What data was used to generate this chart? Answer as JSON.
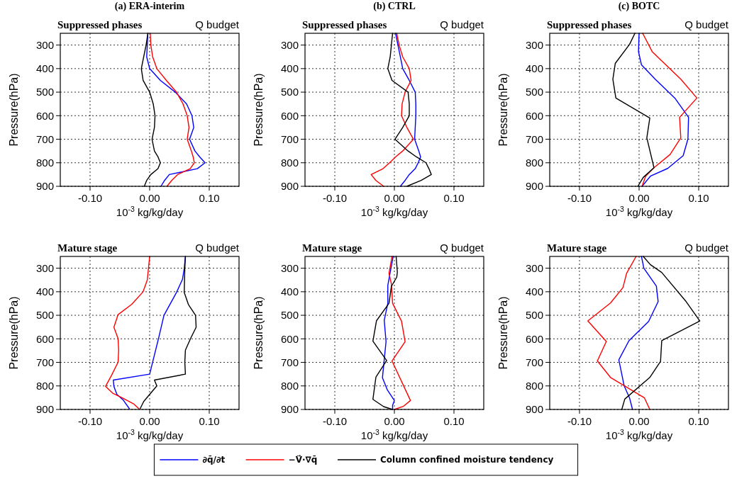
{
  "chart_data": [
    {
      "type": "line",
      "title": "(a) ERA-interim",
      "subtitle": "Suppressed phases",
      "annotations": [
        "Q budget"
      ],
      "xlabel": "10$^{-3}$ kg/kg/day",
      "ylabel": "Pressure(hPa)",
      "xlim": [
        -0.15,
        0.15
      ],
      "xticks": [
        {
          "value": -0.1,
          "label": "-0.10"
        },
        {
          "value": 0,
          "label": "0.00"
        },
        {
          "value": 0.1,
          "label": "0.10"
        }
      ],
      "ylim": [
        900,
        250
      ],
      "yticks": [
        300,
        400,
        500,
        600,
        700,
        800,
        900
      ],
      "grid": true,
      "legend": "bottom",
      "series": [
        {
          "name": "∂q̄/∂t",
          "color": "#0000ff",
          "x": [
            -0.003,
            -0.004,
            -0.005,
            0.0,
            0.018,
            0.043,
            0.062,
            0.071,
            0.074,
            0.067,
            0.076,
            0.084,
            0.093,
            0.08,
            0.033,
            0.025,
            0.019
          ],
          "values": [
            250,
            300,
            350,
            400,
            450,
            500,
            550,
            600,
            650,
            700,
            750,
            775,
            800,
            825,
            850,
            875,
            900
          ]
        },
        {
          "name": "−V⃗·∇q̄",
          "color": "#ff0000",
          "x": [
            0.001,
            0.002,
            0.005,
            0.012,
            0.028,
            0.045,
            0.056,
            0.063,
            0.066,
            0.063,
            0.07,
            0.073,
            0.075,
            0.068,
            0.047,
            0.037,
            0.029
          ],
          "values": [
            250,
            300,
            350,
            400,
            450,
            500,
            550,
            600,
            650,
            700,
            750,
            775,
            800,
            825,
            850,
            875,
            900
          ]
        },
        {
          "name": "Column confined moisture tendency",
          "color": "#000000",
          "x": [
            -0.003,
            -0.006,
            -0.01,
            -0.014,
            -0.011,
            0.0,
            0.006,
            0.009,
            0.008,
            0.004,
            0.008,
            0.014,
            0.018,
            0.014,
            0.002,
            -0.005,
            -0.009
          ],
          "values": [
            250,
            300,
            350,
            400,
            450,
            500,
            550,
            600,
            650,
            700,
            750,
            775,
            800,
            825,
            850,
            875,
            900
          ]
        }
      ]
    },
    {
      "type": "line",
      "title": "(b) CTRL",
      "subtitle": "Suppressed phases",
      "annotations": [
        "Q budget"
      ],
      "xlabel": "10$^{-3}$ kg/kg/day",
      "ylabel": "Pressure(hPa)",
      "xlim": [
        -0.15,
        0.15
      ],
      "xticks": [
        {
          "value": -0.1,
          "label": "-0.10"
        },
        {
          "value": 0,
          "label": "0.00"
        },
        {
          "value": 0.1,
          "label": "0.10"
        }
      ],
      "ylim": [
        900,
        250
      ],
      "yticks": [
        300,
        400,
        500,
        600,
        700,
        800,
        900
      ],
      "grid": true,
      "series": [
        {
          "color": "#0000ff",
          "x": [
            0.002,
            0.006,
            0.01,
            0.014,
            0.025,
            0.035,
            0.036,
            0.036,
            0.035,
            0.034,
            0.041,
            0.044,
            0.04,
            0.035,
            0.025,
            0.018,
            0.01
          ],
          "values": [
            250,
            300,
            350,
            400,
            450,
            500,
            550,
            600,
            650,
            700,
            750,
            775,
            800,
            825,
            850,
            875,
            900
          ]
        },
        {
          "color": "#ff0000",
          "x": [
            0.004,
            0.008,
            0.014,
            0.025,
            0.028,
            0.018,
            0.013,
            0.012,
            0.021,
            0.032,
            0.014,
            0.002,
            -0.008,
            -0.019,
            -0.039,
            -0.031,
            -0.018
          ],
          "values": [
            250,
            300,
            350,
            400,
            450,
            500,
            550,
            600,
            650,
            700,
            750,
            775,
            800,
            825,
            850,
            875,
            900
          ]
        },
        {
          "color": "#000000",
          "x": [
            -0.003,
            -0.005,
            -0.007,
            -0.011,
            -0.004,
            0.023,
            0.025,
            0.025,
            0.014,
            0.001,
            0.023,
            0.037,
            0.053,
            0.058,
            0.062,
            0.045,
            0.021
          ],
          "values": [
            250,
            300,
            350,
            400,
            450,
            500,
            550,
            600,
            650,
            700,
            750,
            775,
            800,
            825,
            850,
            875,
            900
          ]
        }
      ]
    },
    {
      "type": "line",
      "title": "(c) BOTC",
      "subtitle": "Suppressed phases",
      "annotations": [
        "Q budget"
      ],
      "xlabel": "10$^{-3}$ kg/kg/day",
      "ylabel": "Pressure(hPa)",
      "xlim": [
        -0.15,
        0.15
      ],
      "xticks": [
        {
          "value": -0.1,
          "label": "-0.10"
        },
        {
          "value": 0,
          "label": "0.00"
        },
        {
          "value": 0.1,
          "label": "0.10"
        }
      ],
      "ylim": [
        900,
        250
      ],
      "yticks": [
        300,
        400,
        500,
        600,
        700,
        800,
        900
      ],
      "grid": true,
      "series": [
        {
          "color": "#0000ff",
          "x": [
            0.0,
            -0.001,
            0.004,
            0.027,
            0.06,
            0.083,
            0.082,
            0.074,
            0.048,
            0.019,
            0.005
          ],
          "values": [
            250,
            328,
            384,
            445,
            525,
            607,
            699,
            770,
            824,
            857,
            900
          ]
        },
        {
          "color": "#ff0000",
          "x": [
            0.006,
            0.022,
            0.07,
            0.097,
            0.068,
            0.07,
            0.052,
            0.025,
            0.011,
            0.005
          ],
          "values": [
            250,
            328,
            445,
            525,
            607,
            694,
            765,
            821,
            857,
            900
          ]
        },
        {
          "color": "#000000",
          "x": [
            -0.007,
            -0.016,
            -0.04,
            -0.044,
            -0.039,
            0.018,
            0.013,
            0.025,
            0.007,
            -0.002
          ],
          "values": [
            250,
            297,
            378,
            445,
            525,
            610,
            694,
            821,
            862,
            900
          ]
        }
      ]
    },
    {
      "type": "line",
      "subtitle": "Mature stage",
      "annotations": [
        "Q budget"
      ],
      "xlabel": "10$^{-3}$ kg/kg/day",
      "ylabel": "Pressure(hPa)",
      "xlim": [
        -0.15,
        0.15
      ],
      "xticks": [
        {
          "value": -0.1,
          "label": "-0.10"
        },
        {
          "value": 0,
          "label": "0.00"
        },
        {
          "value": 0.1,
          "label": "0.10"
        }
      ],
      "ylim": [
        900,
        250
      ],
      "yticks": [
        300,
        400,
        500,
        600,
        700,
        800,
        900
      ],
      "grid": true,
      "series": [
        {
          "color": "#0000ff",
          "x": [
            0.06,
            0.058,
            0.055,
            0.045,
            0.024,
            0.015,
            0.005,
            0.0,
            -0.061,
            -0.06,
            -0.055,
            -0.044,
            -0.034
          ],
          "values": [
            250,
            302,
            348,
            403,
            500,
            597,
            699,
            750,
            775,
            802,
            836,
            861,
            897
          ]
        },
        {
          "color": "#ff0000",
          "x": [
            0.0,
            -0.004,
            -0.011,
            -0.03,
            -0.053,
            -0.06,
            -0.053,
            -0.052,
            -0.053,
            -0.064,
            -0.074,
            -0.062,
            -0.046,
            -0.027,
            -0.018
          ],
          "values": [
            250,
            350,
            400,
            453,
            497,
            551,
            599,
            648,
            699,
            755,
            802,
            831,
            851,
            876,
            897
          ]
        },
        {
          "color": "#000000",
          "x": [
            0.06,
            0.059,
            0.058,
            0.065,
            0.077,
            0.078,
            0.069,
            0.06,
            0.059,
            0.06,
            0.008,
            0.012,
            0.0,
            -0.01,
            -0.016
          ],
          "values": [
            250,
            302,
            403,
            454,
            500,
            551,
            597,
            648,
            699,
            750,
            775,
            800,
            836,
            866,
            897
          ]
        }
      ]
    },
    {
      "type": "line",
      "subtitle": "Mature stage",
      "annotations": [
        "Q budget"
      ],
      "xlabel": "10$^{-3}$ kg/kg/day",
      "ylabel": "Pressure(hPa)",
      "xlim": [
        -0.15,
        0.15
      ],
      "xticks": [
        {
          "value": -0.1,
          "label": "-0.10"
        },
        {
          "value": 0,
          "label": "0.00"
        },
        {
          "value": 0.1,
          "label": "0.10"
        }
      ],
      "ylim": [
        900,
        250
      ],
      "yticks": [
        300,
        400,
        500,
        600,
        700,
        800,
        900
      ],
      "grid": true,
      "series": [
        {
          "color": "#0000ff",
          "x": [
            -0.002,
            -0.007,
            -0.011,
            -0.011,
            -0.017,
            -0.014,
            -0.02,
            -0.012,
            0.0,
            -0.003,
            -0.003
          ],
          "values": [
            250,
            317,
            373,
            449,
            521,
            612,
            765,
            816,
            862,
            883,
            900
          ]
        },
        {
          "color": "#ff0000",
          "x": [
            -0.004,
            -0.009,
            -0.005,
            -0.003,
            0.012,
            0.018,
            -0.004,
            0.027,
            0.015,
            0.0
          ],
          "values": [
            250,
            322,
            368,
            449,
            525,
            612,
            694,
            862,
            887,
            900
          ]
        },
        {
          "color": "#000000",
          "x": [
            0.003,
            0.005,
            0.004,
            -0.005,
            -0.009,
            -0.03,
            -0.036,
            -0.013,
            -0.031,
            -0.036,
            -0.018,
            -0.003
          ],
          "values": [
            250,
            317,
            338,
            377,
            449,
            523,
            610,
            692,
            763,
            857,
            888,
            900
          ]
        }
      ]
    },
    {
      "type": "line",
      "subtitle": "Mature stage",
      "annotations": [
        "Q budget"
      ],
      "xlabel": "10$^{-3}$ kg/kg/day",
      "ylabel": "Pressure(hPa)",
      "xlim": [
        -0.15,
        0.15
      ],
      "xticks": [
        {
          "value": -0.1,
          "label": "-0.10"
        },
        {
          "value": 0,
          "label": "0.00"
        },
        {
          "value": 0.1,
          "label": "0.10"
        }
      ],
      "ylim": [
        900,
        250
      ],
      "yticks": [
        300,
        400,
        500,
        600,
        700,
        800,
        900
      ],
      "grid": true,
      "series": [
        {
          "color": "#0000ff",
          "x": [
            0.004,
            0.008,
            0.029,
            0.032,
            0.016,
            -0.017,
            -0.034,
            -0.025,
            -0.016,
            -0.011
          ],
          "values": [
            250,
            300,
            376,
            442,
            526,
            608,
            689,
            800,
            851,
            900
          ]
        },
        {
          "color": "#ff0000",
          "x": [
            -0.005,
            -0.021,
            -0.027,
            -0.048,
            -0.086,
            -0.055,
            -0.07,
            -0.048,
            0.009,
            0.018
          ],
          "values": [
            250,
            322,
            382,
            448,
            524,
            611,
            694,
            764,
            851,
            900
          ]
        },
        {
          "color": "#000000",
          "x": [
            0.007,
            0.019,
            0.038,
            0.079,
            0.102,
            0.038,
            0.036,
            0.018,
            -0.024,
            -0.029
          ],
          "values": [
            250,
            285,
            318,
            442,
            524,
            608,
            696,
            764,
            856,
            900
          ]
        }
      ]
    }
  ]
}
